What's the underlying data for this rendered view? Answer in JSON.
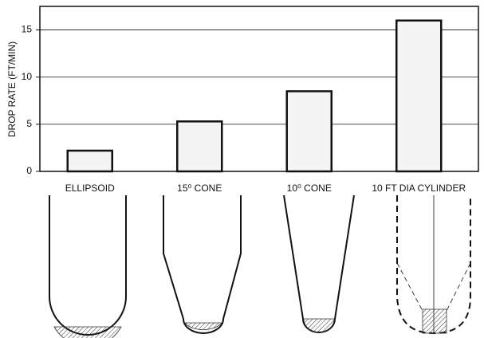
{
  "chart_data": {
    "type": "bar",
    "y_label": "DROP RATE (FT/MIN)",
    "categories": [
      "ELLIPSOID",
      "15⁰ CONE",
      "10⁰ CONE",
      "10 FT DIA CYLINDER"
    ],
    "values": [
      2.2,
      5.3,
      8.5,
      16.0
    ],
    "color": "#f4f4f4",
    "ylim": [
      0,
      17.5
    ],
    "yticks": [
      0,
      5,
      10,
      15
    ],
    "grid": true
  }
}
